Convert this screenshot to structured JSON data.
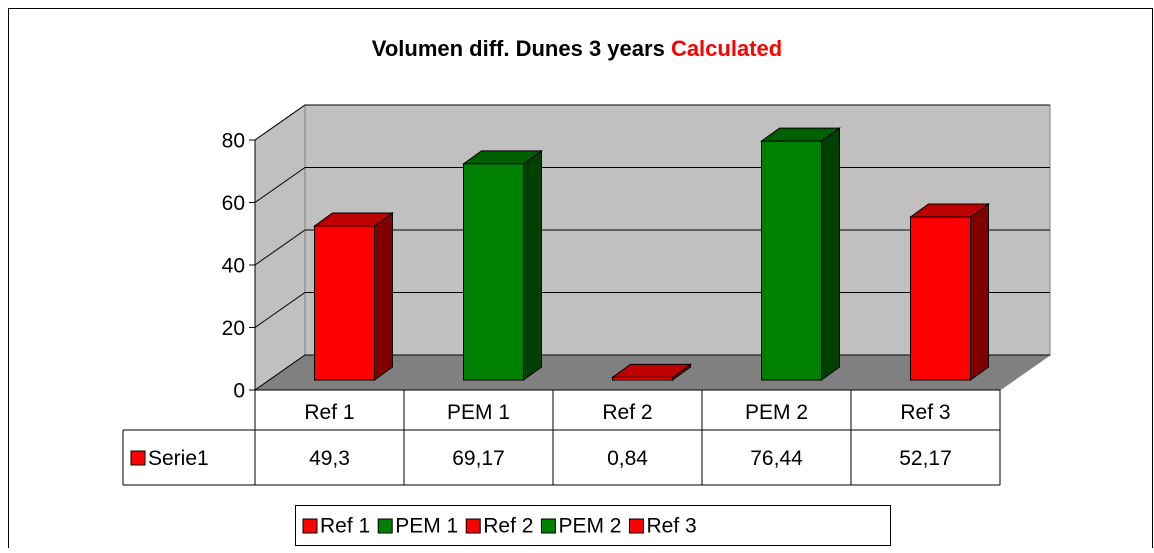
{
  "chart_data": {
    "type": "bar3d",
    "title": "Volumen diff. Dunes 3 years",
    "title_highlight": "Calculated",
    "categories": [
      "Ref 1",
      "PEM 1",
      "Ref 2",
      "PEM 2",
      "Ref 3"
    ],
    "series": [
      {
        "name": "Serie1",
        "values": [
          49.3,
          69.17,
          0.84,
          76.44,
          52.17
        ],
        "value_labels": [
          "49,3",
          "69,17",
          "0,84",
          "76,44",
          "52,17"
        ],
        "colors": [
          "#ff0000",
          "#008000",
          "#ff0000",
          "#008000",
          "#ff0000"
        ]
      }
    ],
    "ylim": [
      0,
      80
    ],
    "yticks": [
      0,
      20,
      40,
      60,
      80
    ],
    "grid": true,
    "data_table": true,
    "legend": "bottom"
  }
}
